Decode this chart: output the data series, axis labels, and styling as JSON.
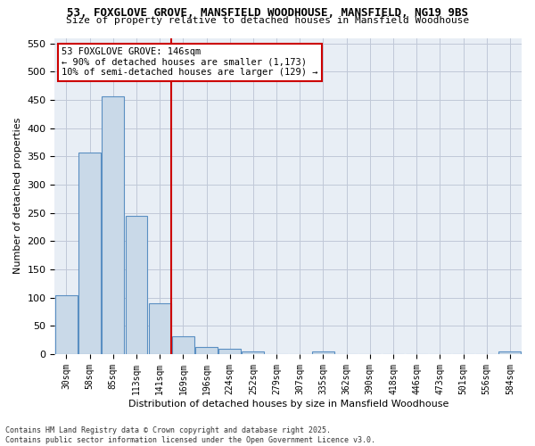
{
  "title": "53, FOXGLOVE GROVE, MANSFIELD WOODHOUSE, MANSFIELD, NG19 9BS",
  "subtitle": "Size of property relative to detached houses in Mansfield Woodhouse",
  "xlabel": "Distribution of detached houses by size in Mansfield Woodhouse",
  "ylabel": "Number of detached properties",
  "categories": [
    "30sqm",
    "58sqm",
    "85sqm",
    "113sqm",
    "141sqm",
    "169sqm",
    "196sqm",
    "224sqm",
    "252sqm",
    "279sqm",
    "307sqm",
    "335sqm",
    "362sqm",
    "390sqm",
    "418sqm",
    "446sqm",
    "473sqm",
    "501sqm",
    "556sqm",
    "584sqm"
  ],
  "values": [
    104,
    357,
    457,
    245,
    90,
    31,
    13,
    9,
    5,
    0,
    0,
    5,
    0,
    0,
    0,
    0,
    0,
    0,
    0,
    5
  ],
  "bar_color": "#c9d9e8",
  "bar_edge_color": "#5a8fc2",
  "grid_color": "#c0c8d8",
  "bg_color": "#e8eef5",
  "marker_bin_index": 4,
  "marker_line_color": "#cc0000",
  "annotation_line1": "53 FOXGLOVE GROVE: 146sqm",
  "annotation_line2": "← 90% of detached houses are smaller (1,173)",
  "annotation_line3": "10% of semi-detached houses are larger (129) →",
  "annotation_box_color": "#cc0000",
  "footer": "Contains HM Land Registry data © Crown copyright and database right 2025.\nContains public sector information licensed under the Open Government Licence v3.0.",
  "ylim": [
    0,
    560
  ],
  "yticks": [
    0,
    50,
    100,
    150,
    200,
    250,
    300,
    350,
    400,
    450,
    500,
    550
  ],
  "title_fontsize": 9,
  "subtitle_fontsize": 8
}
